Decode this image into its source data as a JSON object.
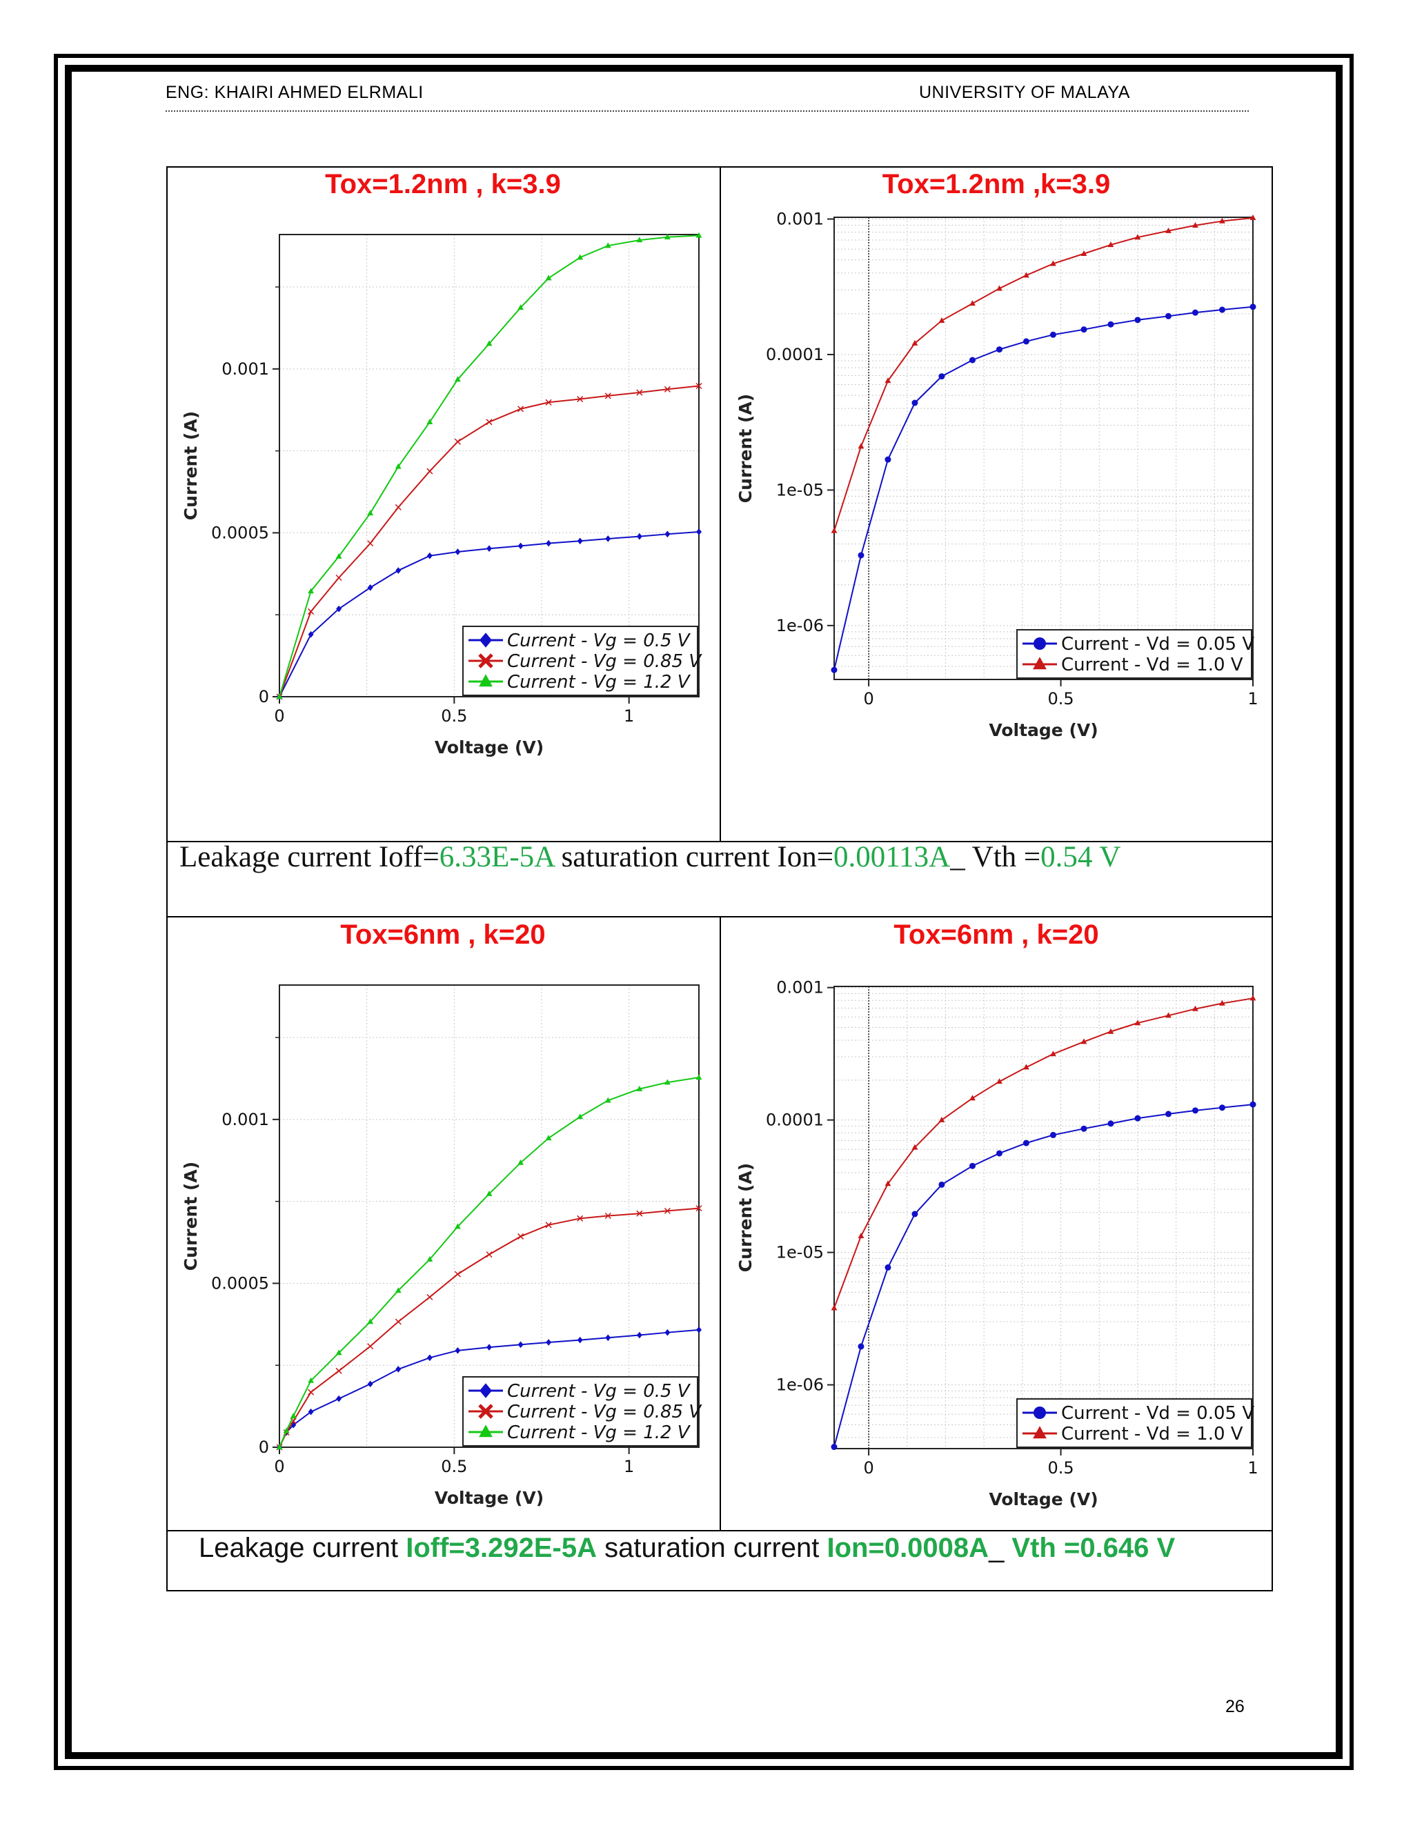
{
  "header": {
    "left": "ENG: KHAIRI  AHMED  ELRMALI",
    "right": "UNIVERSITY OF MALAYA"
  },
  "page_number": "26",
  "panels": [
    {
      "title": "Tox=1.2nm , k=3.9"
    },
    {
      "title": "Tox=1.2nm ,k=3.9"
    },
    {
      "title": "Tox=6nm , k=20"
    },
    {
      "title": "Tox=6nm , k=20"
    }
  ],
  "captions": [
    {
      "p1": "Leakage current Ioff=",
      "v1": "6.33E-5A",
      "p2": " saturation current  Ion=",
      "v2": "0.00113A",
      "p3": "_ Vth =",
      "v3": "0.54 V"
    },
    {
      "p1": "Leakage current ",
      "v1": "Ioff=3.292E-5A",
      "p2": " saturation current  ",
      "v2": "Ion=0.0008A",
      "p3": "_ ",
      "v3": "Vth =0.646 V"
    }
  ],
  "chart_data": [
    {
      "type": "line",
      "xlabel": "Voltage (V)",
      "ylabel": "Current (A)",
      "xlim": [
        0,
        1.2
      ],
      "ylim": [
        0,
        0.00141
      ],
      "xticks": [
        "0",
        "0.5",
        "1"
      ],
      "yticks": [
        "0",
        "0.0005",
        "0.001"
      ],
      "legend": "bottom-right",
      "grid": true,
      "x": [
        0,
        0.09,
        0.17,
        0.26,
        0.34,
        0.43,
        0.51,
        0.6,
        0.69,
        0.77,
        0.86,
        0.94,
        1.03,
        1.11,
        1.2
      ],
      "series": [
        {
          "name": "Current - Vg = 0.5 V",
          "color": "#1010c8",
          "marker": "diamond",
          "values": [
            0,
            0.00019,
            0.000268,
            0.000333,
            0.000385,
            0.00043,
            0.000442,
            0.000452,
            0.00046,
            0.000468,
            0.000475,
            0.000482,
            0.000489,
            0.000496,
            0.000503
          ]
        },
        {
          "name": "Current - Vg = 0.85 V",
          "color": "#c81818",
          "marker": "x",
          "values": [
            0,
            0.00026,
            0.000363,
            0.000468,
            0.000578,
            0.000688,
            0.000778,
            0.000838,
            0.000878,
            0.000898,
            0.000908,
            0.000918,
            0.000928,
            0.000938,
            0.000948
          ]
        },
        {
          "name": "Current - Vg = 1.2 V",
          "color": "#14c814",
          "marker": "triangle",
          "values": [
            0,
            0.000322,
            0.000428,
            0.00056,
            0.000702,
            0.000838,
            0.000968,
            0.001077,
            0.001187,
            0.001277,
            0.00134,
            0.001376,
            0.001393,
            0.001402,
            0.001407
          ]
        }
      ]
    },
    {
      "type": "line",
      "xlabel": "Voltage (V)",
      "ylabel": "Current (A)",
      "xlim": [
        -0.09,
        1
      ],
      "ylim": [
        4e-07,
        0.00103
      ],
      "yscale": "log",
      "xticks": [
        "0",
        "0.5",
        "1"
      ],
      "yticks": [
        "1e-06",
        "1e-05",
        "0.0001",
        "0.001"
      ],
      "legend": "bottom-right",
      "grid": true,
      "series": [
        {
          "name": "Current - Vd = 0.05 V",
          "color": "#1010c8",
          "marker": "circle",
          "x": [
            -0.09,
            -0.02,
            0.05,
            0.12,
            0.19,
            0.27,
            0.34,
            0.41,
            0.48,
            0.56,
            0.63,
            0.7,
            0.78,
            0.85,
            0.92,
            1
          ],
          "values": [
            4.7e-07,
            3.3e-06,
            1.68e-05,
            4.4e-05,
            6.9e-05,
            9.1e-05,
            0.000109,
            0.000125,
            0.00014,
            0.000153,
            0.000167,
            0.00018,
            0.000192,
            0.000204,
            0.000214,
            0.000225
          ]
        },
        {
          "name": "Current - Vd = 1.0 V",
          "color": "#c81818",
          "marker": "triangle",
          "x": [
            -0.09,
            -0.02,
            0.05,
            0.12,
            0.19,
            0.27,
            0.34,
            0.41,
            0.48,
            0.56,
            0.63,
            0.7,
            0.78,
            0.85,
            0.92,
            1
          ],
          "values": [
            5e-06,
            2.1e-05,
            6.4e-05,
            0.000121,
            0.000178,
            0.000238,
            0.000307,
            0.000384,
            0.000468,
            0.000555,
            0.000645,
            0.000733,
            0.000818,
            0.000897,
            0.000965,
            0.00102
          ]
        }
      ]
    },
    {
      "type": "line",
      "xlabel": "Voltage (V)",
      "ylabel": "Current (A)",
      "xlim": [
        0,
        1.2
      ],
      "ylim": [
        0,
        0.00141
      ],
      "xticks": [
        "0",
        "0.5",
        "1"
      ],
      "yticks": [
        "0",
        "0.0005",
        "0.001"
      ],
      "legend": "bottom-right",
      "grid": true,
      "x": [
        0,
        0.02,
        0.04,
        0.09,
        0.17,
        0.26,
        0.34,
        0.43,
        0.51,
        0.6,
        0.69,
        0.77,
        0.86,
        0.94,
        1.03,
        1.11,
        1.2
      ],
      "series": [
        {
          "name": "Current - Vg = 0.5 V",
          "color": "#1010c8",
          "marker": "diamond",
          "values": [
            0,
            4.5e-05,
            6.8e-05,
            0.000108,
            0.000148,
            0.000193,
            0.000238,
            0.000273,
            0.000295,
            0.000305,
            0.000313,
            0.00032,
            0.000327,
            0.000334,
            0.000342,
            0.00035,
            0.000358
          ]
        },
        {
          "name": "Current - Vg = 0.85 V",
          "color": "#c81818",
          "marker": "x",
          "values": [
            0,
            4.5e-05,
            8e-05,
            0.000168,
            0.000233,
            0.000308,
            0.000383,
            0.000458,
            0.000528,
            0.000588,
            0.000643,
            0.000678,
            0.000698,
            0.000706,
            0.000713,
            0.000721,
            0.000729
          ]
        },
        {
          "name": "Current - Vg = 1.2 V",
          "color": "#14c814",
          "marker": "triangle",
          "values": [
            0,
            5e-05,
            9.5e-05,
            0.000203,
            0.000288,
            0.000383,
            0.000478,
            0.000573,
            0.000673,
            0.000773,
            0.000868,
            0.000943,
            0.001008,
            0.001058,
            0.001093,
            0.001113,
            0.001128
          ]
        }
      ]
    },
    {
      "type": "line",
      "xlabel": "Voltage (V)",
      "ylabel": "Current (A)",
      "xlim": [
        -0.09,
        1
      ],
      "ylim": [
        3.3e-07,
        0.00102
      ],
      "yscale": "log",
      "xticks": [
        "0",
        "0.5",
        "1"
      ],
      "yticks": [
        "1e-06",
        "1e-05",
        "0.0001",
        "0.001"
      ],
      "legend": "bottom-right",
      "grid": true,
      "series": [
        {
          "name": "Current - Vd = 0.05 V",
          "color": "#1010c8",
          "marker": "circle",
          "x": [
            -0.09,
            -0.02,
            0.05,
            0.12,
            0.19,
            0.27,
            0.34,
            0.41,
            0.48,
            0.56,
            0.63,
            0.7,
            0.78,
            0.85,
            0.92,
            1
          ],
          "values": [
            3.4e-07,
            1.95e-06,
            7.7e-06,
            1.95e-05,
            3.25e-05,
            4.5e-05,
            5.6e-05,
            6.7e-05,
            7.7e-05,
            8.6e-05,
            9.4e-05,
            0.000103,
            0.000111,
            0.000118,
            0.000124,
            0.000131
          ]
        },
        {
          "name": "Current - Vd = 1.0 V",
          "color": "#c81818",
          "marker": "triangle",
          "x": [
            -0.09,
            -0.02,
            0.05,
            0.12,
            0.19,
            0.27,
            0.34,
            0.41,
            0.48,
            0.56,
            0.63,
            0.7,
            0.78,
            0.85,
            0.92,
            1
          ],
          "values": [
            3.8e-06,
            1.33e-05,
            3.3e-05,
            6.2e-05,
            0.0001,
            0.000146,
            0.000195,
            0.00025,
            0.000315,
            0.00039,
            0.000465,
            0.00054,
            0.000615,
            0.00069,
            0.00076,
            0.00083
          ]
        }
      ]
    }
  ]
}
